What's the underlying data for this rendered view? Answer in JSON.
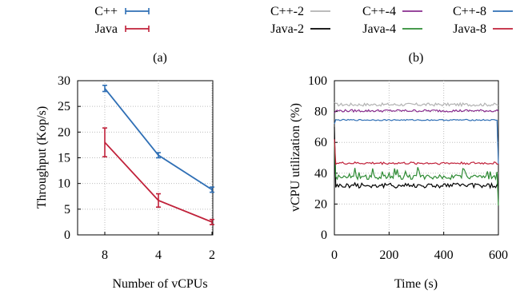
{
  "colors": {
    "cpp": "#2f6fb5",
    "java": "#c0213a",
    "gray": "#b3b3b3",
    "black": "#000000",
    "purple": "#8a2e8f",
    "green": "#2e8b34"
  },
  "chart_data": [
    {
      "type": "line",
      "panel_label": "(a)",
      "xlabel": "Number of vCPUs",
      "ylabel": "Throughput (Kop/s)",
      "categories": [
        "8",
        "4",
        "2"
      ],
      "ylim": [
        0,
        30
      ],
      "yticks": [
        "0",
        "5",
        "10",
        "15",
        "20",
        "25",
        "30"
      ],
      "grid": true,
      "legend": "top",
      "series": [
        {
          "name": "C++",
          "color": "#2f6fb5",
          "values": [
            28.5,
            15.5,
            8.8
          ],
          "err": [
            0.6,
            0.5,
            0.5
          ]
        },
        {
          "name": "Java",
          "color": "#c0213a",
          "values": [
            18.0,
            6.7,
            2.5
          ],
          "err": [
            2.8,
            1.3,
            0.5
          ]
        }
      ]
    },
    {
      "type": "line",
      "panel_label": "(b)",
      "xlabel": "Time (s)",
      "ylabel": "vCPU utilization (%)",
      "xlim": [
        0,
        600
      ],
      "ylim": [
        0,
        100
      ],
      "xticks": [
        "0",
        "200",
        "400",
        "600"
      ],
      "yticks": [
        "0",
        "20",
        "40",
        "60",
        "80",
        "100"
      ],
      "grid": true,
      "legend": "top",
      "series": [
        {
          "name": "C++-2",
          "color": "#b3b3b3",
          "mean": 84.5,
          "amp": 1.0,
          "start": 86,
          "end": 84
        },
        {
          "name": "Java-2",
          "color": "#000000",
          "mean": 32.0,
          "amp": 1.6,
          "start": 70,
          "end": 30
        },
        {
          "name": "C++-4",
          "color": "#8a2e8f",
          "mean": 80.5,
          "amp": 0.8,
          "start": 79,
          "end": 80
        },
        {
          "name": "Java-4",
          "color": "#2e8b34",
          "mean": 37.5,
          "amp": 1.5,
          "start": 60,
          "end": 19
        },
        {
          "name": "C++-8",
          "color": "#2f6fb5",
          "mean": 74.5,
          "amp": 0.4,
          "start": 72,
          "end": 46
        },
        {
          "name": "Java-8",
          "color": "#c0213a",
          "mean": 46.5,
          "amp": 0.8,
          "start": 62,
          "end": 46
        }
      ]
    }
  ]
}
